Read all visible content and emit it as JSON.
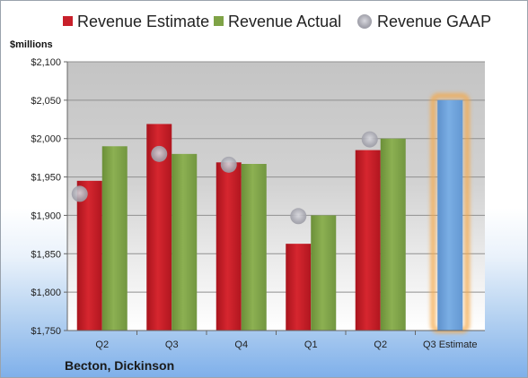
{
  "chart_data": {
    "type": "bar",
    "unit_label": "$millions",
    "company": "Becton, Dickinson",
    "categories": [
      "Q2",
      "Q3",
      "Q4",
      "Q1",
      "Q2",
      "Q3 Estimate"
    ],
    "series": [
      {
        "name": "Revenue Estimate",
        "color": "#c8202a",
        "values": [
          1945,
          2019,
          1969,
          1863,
          1985,
          null
        ]
      },
      {
        "name": "Revenue Actual",
        "color": "#7fa346",
        "values": [
          1990,
          1980,
          1967,
          1900,
          2000,
          null
        ]
      },
      {
        "name": "Revenue GAAP",
        "color": "#a8a8b0",
        "marker": "circle",
        "values": [
          1928,
          1980,
          1966,
          1899,
          1999,
          null
        ]
      }
    ],
    "projection": {
      "category": "Q3 Estimate",
      "value": 2050,
      "color": "#6b9fd8",
      "glow": "#f5a94a"
    },
    "yticks": [
      "$1,750",
      "$1,800",
      "$1,850",
      "$1,900",
      "$1,950",
      "$2,000",
      "$2,050",
      "$2,100"
    ],
    "ylim": [
      1750,
      2100
    ],
    "grid": true,
    "legend_position": "top"
  }
}
